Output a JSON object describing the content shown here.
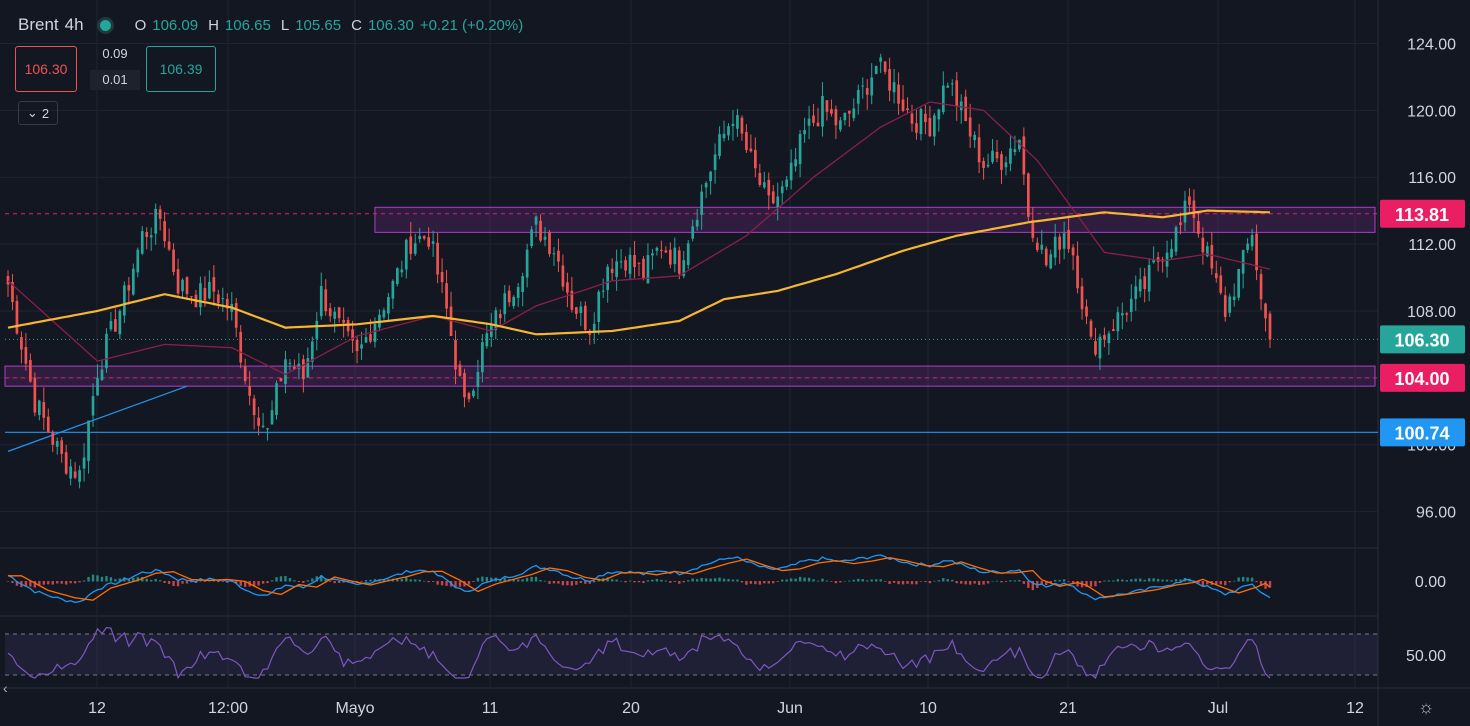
{
  "header": {
    "symbol": "Brent",
    "timeframe": "4h",
    "o_label": "O",
    "o_value": "106.09",
    "h_label": "H",
    "h_value": "106.65",
    "l_label": "L",
    "l_value": "105.65",
    "c_label": "C",
    "c_value": "106.30",
    "change": "+0.21 (+0.20%)"
  },
  "trade": {
    "sell_price": "106.30",
    "spread_top": "0.09",
    "spread_bottom": "0.01",
    "buy_price": "106.39",
    "indicators_collapsed": "2"
  },
  "colors": {
    "bg": "#131722",
    "grid": "#1f2430",
    "up": "#26a69a",
    "down": "#ef5350",
    "ma_long": "#f5b731",
    "ma_short": "#8b1e4a",
    "zone": "#b03cc9",
    "trend": "#2196f3",
    "rsi": "#7e57c2",
    "text": "#d1d4dc"
  },
  "chart_data": {
    "type": "candlestick",
    "title": "Brent 4h",
    "ylim": [
      94,
      126
    ],
    "y_ticks": [
      "124.00",
      "120.00",
      "116.00",
      "112.00",
      "108.00",
      "104.00",
      "100.00",
      "96.00"
    ],
    "x_ticks": [
      "12",
      "12:00",
      "Mayo",
      "11",
      "20",
      "Jun",
      "10",
      "21",
      "Jul",
      "12"
    ],
    "close_path": [
      [
        0,
        109.6
      ],
      [
        6,
        102.6
      ],
      [
        12,
        99.2
      ],
      [
        16,
        98.2
      ],
      [
        20,
        104.5
      ],
      [
        26,
        108.8
      ],
      [
        30,
        112.5
      ],
      [
        34,
        113.6
      ],
      [
        38,
        109.6
      ],
      [
        42,
        108.9
      ],
      [
        46,
        109.2
      ],
      [
        50,
        108.0
      ],
      [
        54,
        103.0
      ],
      [
        58,
        100.7
      ],
      [
        62,
        105.2
      ],
      [
        66,
        104.0
      ],
      [
        70,
        109.1
      ],
      [
        74,
        107.0
      ],
      [
        78,
        105.2
      ],
      [
        82,
        107.5
      ],
      [
        86,
        109.5
      ],
      [
        90,
        112.2
      ],
      [
        94,
        112.5
      ],
      [
        98,
        108.0
      ],
      [
        102,
        102.2
      ],
      [
        106,
        105.8
      ],
      [
        110,
        108.0
      ],
      [
        114,
        110.1
      ],
      [
        118,
        113.1
      ],
      [
        122,
        111.8
      ],
      [
        126,
        108.5
      ],
      [
        130,
        107.1
      ],
      [
        134,
        110.8
      ],
      [
        138,
        111.2
      ],
      [
        142,
        110.2
      ],
      [
        146,
        112.0
      ],
      [
        150,
        110.9
      ],
      [
        154,
        114.2
      ],
      [
        158,
        117.3
      ],
      [
        162,
        119.8
      ],
      [
        166,
        116.9
      ],
      [
        170,
        114.3
      ],
      [
        174,
        115.4
      ],
      [
        178,
        118.6
      ],
      [
        182,
        120.1
      ],
      [
        186,
        119.0
      ],
      [
        190,
        120.6
      ],
      [
        194,
        122.7
      ],
      [
        198,
        121.4
      ],
      [
        202,
        119.5
      ],
      [
        206,
        119.2
      ],
      [
        210,
        121.9
      ],
      [
        214,
        119.2
      ],
      [
        218,
        116.8
      ],
      [
        222,
        117.1
      ],
      [
        226,
        118.4
      ],
      [
        228,
        113.9
      ],
      [
        232,
        110.8
      ],
      [
        236,
        112.8
      ],
      [
        238,
        111.5
      ],
      [
        242,
        105.9
      ],
      [
        246,
        106.9
      ],
      [
        250,
        108.2
      ],
      [
        254,
        109.5
      ],
      [
        258,
        111.6
      ],
      [
        262,
        113.0
      ],
      [
        264,
        114.7
      ],
      [
        266,
        112.9
      ],
      [
        270,
        109.5
      ],
      [
        272,
        108.0
      ],
      [
        276,
        110.9
      ],
      [
        278,
        112.8
      ],
      [
        280,
        108.6
      ],
      [
        282,
        106.3
      ]
    ],
    "ma_long": [
      [
        0,
        107.0
      ],
      [
        20,
        108.0
      ],
      [
        35,
        109.0
      ],
      [
        50,
        108.2
      ],
      [
        62,
        107.0
      ],
      [
        78,
        107.2
      ],
      [
        95,
        107.7
      ],
      [
        108,
        107.2
      ],
      [
        118,
        106.6
      ],
      [
        135,
        106.8
      ],
      [
        150,
        107.4
      ],
      [
        160,
        108.7
      ],
      [
        172,
        109.2
      ],
      [
        185,
        110.2
      ],
      [
        200,
        111.6
      ],
      [
        212,
        112.5
      ],
      [
        228,
        113.3
      ],
      [
        245,
        113.9
      ],
      [
        258,
        113.6
      ],
      [
        268,
        114.0
      ],
      [
        282,
        113.9
      ]
    ],
    "ma_short": [
      [
        0,
        109.8
      ],
      [
        20,
        105.0
      ],
      [
        35,
        106.0
      ],
      [
        50,
        105.8
      ],
      [
        62,
        104.2
      ],
      [
        78,
        106.5
      ],
      [
        95,
        107.7
      ],
      [
        108,
        106.8
      ],
      [
        118,
        108.3
      ],
      [
        135,
        109.8
      ],
      [
        150,
        110.1
      ],
      [
        165,
        112.5
      ],
      [
        180,
        116.0
      ],
      [
        195,
        119.0
      ],
      [
        206,
        120.5
      ],
      [
        218,
        120.0
      ],
      [
        230,
        117.0
      ],
      [
        245,
        111.5
      ],
      [
        258,
        111.0
      ],
      [
        268,
        111.4
      ],
      [
        282,
        110.5
      ]
    ],
    "zones": [
      {
        "label": "113.81",
        "low": 112.7,
        "high": 114.2,
        "from": 82
      },
      {
        "label": "104.00",
        "low": 103.5,
        "high": 104.7,
        "from": 0
      }
    ],
    "horizontal_lines": [
      {
        "label": "100.74",
        "value": 100.74
      },
      {
        "label": "106.30",
        "value": 106.3
      }
    ],
    "trendline": [
      [
        0,
        99.6
      ],
      [
        40,
        103.5
      ]
    ],
    "macd_tick": "0.00",
    "rsi_tick": "50.00"
  }
}
